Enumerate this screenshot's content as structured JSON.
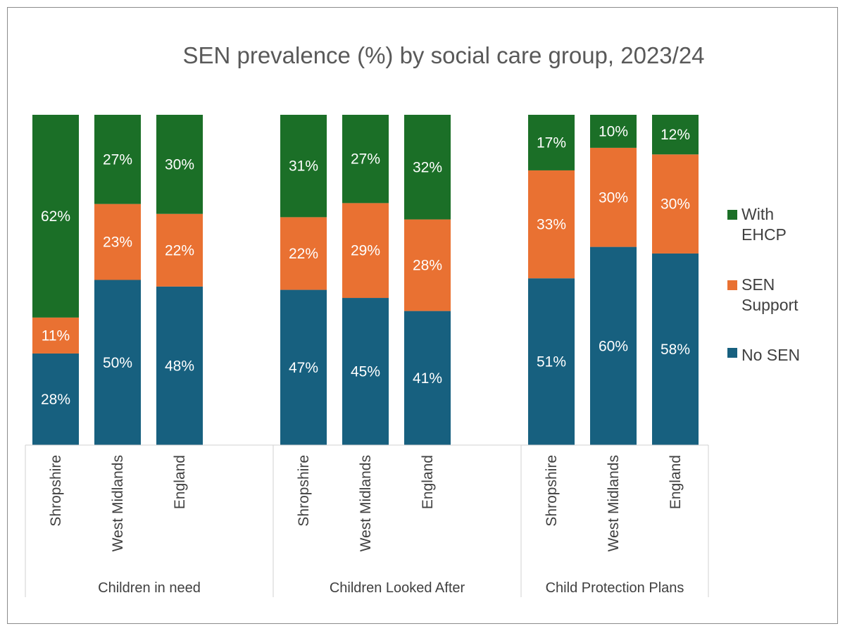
{
  "chart_data": {
    "type": "bar",
    "stacked": true,
    "title": "SEN prevalence (%) by social care group, 2023/24",
    "groups": [
      {
        "name": "Children in need",
        "categories": [
          "Shropshire",
          "West Midlands",
          "England"
        ]
      },
      {
        "name": "Children Looked After",
        "categories": [
          "Shropshire",
          "West Midlands",
          "England"
        ]
      },
      {
        "name": "Child Protection Plans",
        "categories": [
          "Shropshire",
          "West Midlands",
          "England"
        ]
      }
    ],
    "series": [
      {
        "name": "No SEN",
        "color": "#17607f",
        "values": [
          28,
          50,
          48,
          47,
          45,
          41,
          51,
          60,
          58
        ],
        "labels": [
          "28%",
          "50%",
          "48%",
          "47%",
          "45%",
          "41%",
          "51%",
          "60%",
          "58%"
        ]
      },
      {
        "name": "SEN Support",
        "color": "#e97132",
        "values": [
          11,
          23,
          22,
          22,
          29,
          28,
          33,
          30,
          30
        ],
        "labels": [
          "11%",
          "23%",
          "22%",
          "22%",
          "29%",
          "28%",
          "33%",
          "30%",
          "30%"
        ]
      },
      {
        "name": "With EHCP",
        "color": "#1b6f27",
        "values": [
          62,
          27,
          30,
          31,
          27,
          32,
          17,
          10,
          12
        ],
        "labels": [
          "62%",
          "27%",
          "30%",
          "31%",
          "27%",
          "32%",
          "17%",
          "10%",
          "12%"
        ]
      }
    ],
    "legend": {
      "position": "right",
      "items": [
        {
          "series": "With EHCP",
          "lines": [
            "With",
            "EHCP"
          ]
        },
        {
          "series": "SEN Support",
          "lines": [
            "SEN",
            "Support"
          ]
        },
        {
          "series": "No SEN",
          "lines": [
            "No SEN"
          ]
        }
      ]
    },
    "ylim": [
      0,
      100
    ],
    "grid": false
  }
}
